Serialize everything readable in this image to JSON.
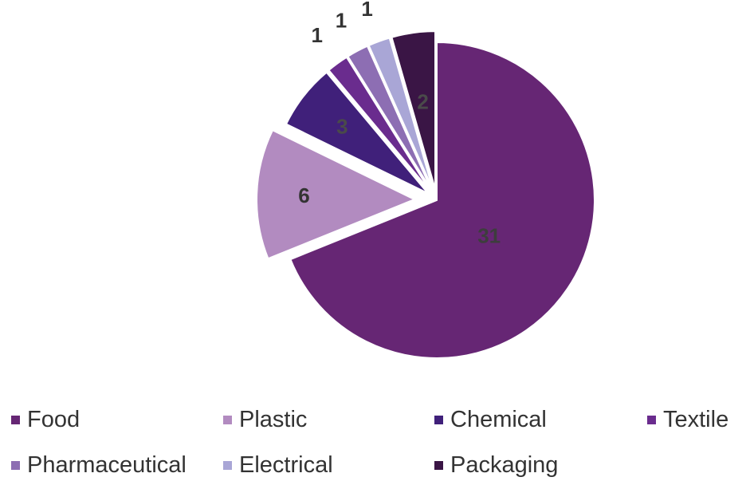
{
  "chart_data": {
    "type": "pie",
    "categories": [
      "Food",
      "Plastic",
      "Chemical",
      "Textile",
      "Pharmaceutical",
      "Electrical",
      "Packaging"
    ],
    "values": [
      31,
      6,
      3,
      1,
      1,
      1,
      2
    ],
    "data_labels": [
      "31",
      "6",
      "3",
      "1",
      "1",
      "1",
      "2"
    ],
    "colors": [
      "#662674",
      "#B28BC0",
      "#40207A",
      "#6A2C8E",
      "#8D6EB3",
      "#A9A6D6",
      "#3A1545"
    ],
    "legend_position": "bottom",
    "exploded": true,
    "start_angle_from_top_deg": 0,
    "direction": "clockwise"
  }
}
